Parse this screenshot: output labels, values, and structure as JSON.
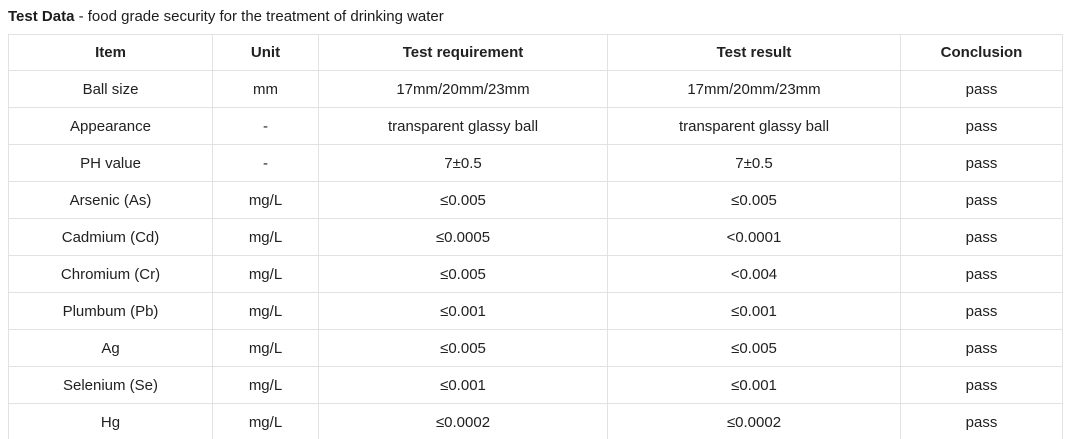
{
  "title": {
    "bold": "Test Data",
    "rest": " - food grade security for the treatment of drinking water"
  },
  "colors": {
    "border": "#e2e2e2",
    "text": "#212121",
    "background": "#ffffff"
  },
  "table": {
    "headers": [
      "Item",
      "Unit",
      "Test requirement",
      "Test result",
      "Conclusion"
    ],
    "rows": [
      {
        "item": "Ball size",
        "unit": "mm",
        "requirement": "17mm/20mm/23mm",
        "result": "17mm/20mm/23mm",
        "conclusion": "pass"
      },
      {
        "item": "Appearance",
        "unit": "-",
        "requirement": "transparent glassy ball",
        "result": "transparent glassy ball",
        "conclusion": "pass"
      },
      {
        "item": "PH value",
        "unit": "-",
        "requirement": "7±0.5",
        "result": "7±0.5",
        "conclusion": "pass"
      },
      {
        "item": "Arsenic (As)",
        "unit": "mg/L",
        "requirement": "≤0.005",
        "result": "≤0.005",
        "conclusion": "pass"
      },
      {
        "item": "Cadmium (Cd)",
        "unit": "mg/L",
        "requirement": "≤0.0005",
        "result": "<0.0001",
        "conclusion": "pass"
      },
      {
        "item": "Chromium (Cr)",
        "unit": "mg/L",
        "requirement": "≤0.005",
        "result": "<0.004",
        "conclusion": "pass"
      },
      {
        "item": "Plumbum (Pb)",
        "unit": "mg/L",
        "requirement": "≤0.001",
        "result": "≤0.001",
        "conclusion": "pass"
      },
      {
        "item": "Ag",
        "unit": "mg/L",
        "requirement": "≤0.005",
        "result": "≤0.005",
        "conclusion": "pass"
      },
      {
        "item": "Selenium (Se)",
        "unit": "mg/L",
        "requirement": "≤0.001",
        "result": "≤0.001",
        "conclusion": "pass"
      },
      {
        "item": "Hg",
        "unit": "mg/L",
        "requirement": "≤0.0002",
        "result": "≤0.0002",
        "conclusion": "pass"
      }
    ]
  }
}
